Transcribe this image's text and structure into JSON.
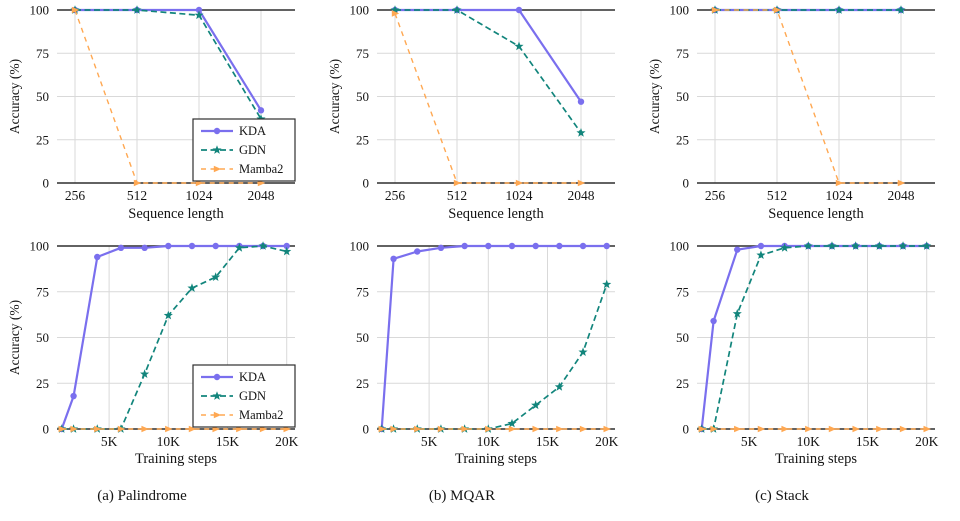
{
  "figure": {
    "captions": [
      {
        "label": "(a) Palindrome"
      },
      {
        "label": "(b) MQAR"
      },
      {
        "label": "(c) Stack"
      }
    ]
  },
  "colors": {
    "kda": "#7a6fee",
    "gdn": "#12857c",
    "mamba2": "#ffa852",
    "grid": "#d9d9d9",
    "axis": "#2e2e2e",
    "text": "#141414"
  },
  "legend_labels": [
    "KDA",
    "GDN",
    "Mamba2"
  ],
  "chart_data": [
    {
      "type": "line",
      "task": "Palindrome",
      "row": "top",
      "xlabel": "Sequence length",
      "ylabel": "Accuracy (%)",
      "x_tick_labels": [
        "256",
        "512",
        "1024",
        "2048"
      ],
      "y_ticks": [
        0,
        25,
        50,
        75,
        100
      ],
      "ylim": [
        0,
        100
      ],
      "legend_position": "bottom-right",
      "series": [
        {
          "name": "KDA",
          "color_key": "kda",
          "style": "solid",
          "marker": "circle",
          "values": [
            100,
            100,
            100,
            42
          ]
        },
        {
          "name": "GDN",
          "color_key": "gdn",
          "style": "dashed",
          "marker": "star",
          "values": [
            100,
            100,
            97,
            37
          ]
        },
        {
          "name": "Mamba2",
          "color_key": "mamba2",
          "style": "dashed",
          "marker": "triangle-right",
          "values": [
            100,
            0,
            0,
            0
          ]
        }
      ]
    },
    {
      "type": "line",
      "task": "MQAR",
      "row": "top",
      "xlabel": "Sequence length",
      "ylabel": "Accuracy (%)",
      "x_tick_labels": [
        "256",
        "512",
        "1024",
        "2048"
      ],
      "y_ticks": [
        0,
        25,
        50,
        75,
        100
      ],
      "ylim": [
        0,
        100
      ],
      "legend_position": null,
      "series": [
        {
          "name": "KDA",
          "color_key": "kda",
          "style": "solid",
          "marker": "circle",
          "values": [
            100,
            100,
            100,
            47
          ]
        },
        {
          "name": "GDN",
          "color_key": "gdn",
          "style": "dashed",
          "marker": "star",
          "values": [
            100,
            100,
            79,
            29
          ]
        },
        {
          "name": "Mamba2",
          "color_key": "mamba2",
          "style": "dashed",
          "marker": "triangle-right",
          "values": [
            98,
            0,
            0,
            0
          ]
        }
      ]
    },
    {
      "type": "line",
      "task": "Stack",
      "row": "top",
      "xlabel": "Sequence length",
      "ylabel": "Accuracy (%)",
      "x_tick_labels": [
        "256",
        "512",
        "1024",
        "2048"
      ],
      "y_ticks": [
        0,
        25,
        50,
        75,
        100
      ],
      "ylim": [
        0,
        100
      ],
      "legend_position": null,
      "series": [
        {
          "name": "KDA",
          "color_key": "kda",
          "style": "solid",
          "marker": "circle",
          "values": [
            100,
            100,
            100,
            100
          ]
        },
        {
          "name": "GDN",
          "color_key": "gdn",
          "style": "dashed",
          "marker": "star",
          "values": [
            100,
            100,
            100,
            100
          ]
        },
        {
          "name": "Mamba2",
          "color_key": "mamba2",
          "style": "dashed",
          "marker": "triangle-right",
          "values": [
            100,
            100,
            0,
            0
          ]
        }
      ]
    },
    {
      "type": "line",
      "task": "Palindrome",
      "row": "bottom",
      "xlabel": "Training steps",
      "ylabel": "Accuracy (%)",
      "x": [
        1,
        2,
        4,
        6,
        8,
        10,
        12,
        14,
        16,
        18,
        20
      ],
      "x_ticks": [
        5,
        10,
        15,
        20
      ],
      "x_tick_labels": [
        "5K",
        "10K",
        "15K",
        "20K"
      ],
      "y_ticks": [
        0,
        25,
        50,
        75,
        100
      ],
      "ylim": [
        0,
        100
      ],
      "legend_position": "bottom-right",
      "series": [
        {
          "name": "KDA",
          "color_key": "kda",
          "style": "solid",
          "marker": "circle",
          "values": [
            0,
            18,
            94,
            99,
            99,
            100,
            100,
            100,
            100,
            100,
            100
          ]
        },
        {
          "name": "GDN",
          "color_key": "gdn",
          "style": "dashed",
          "marker": "star",
          "values": [
            0,
            0,
            0,
            0,
            30,
            62,
            77,
            83,
            99,
            100,
            97
          ]
        },
        {
          "name": "Mamba2",
          "color_key": "mamba2",
          "style": "dashed",
          "marker": "triangle-right",
          "values": [
            0,
            0,
            0,
            0,
            0,
            0,
            0,
            0,
            0,
            0,
            0
          ]
        }
      ]
    },
    {
      "type": "line",
      "task": "MQAR",
      "row": "bottom",
      "xlabel": "Training steps",
      "ylabel": "",
      "x": [
        1,
        2,
        4,
        6,
        8,
        10,
        12,
        14,
        16,
        18,
        20
      ],
      "x_ticks": [
        5,
        10,
        15,
        20
      ],
      "x_tick_labels": [
        "5K",
        "10K",
        "15K",
        "20K"
      ],
      "y_ticks": [
        0,
        25,
        50,
        75,
        100
      ],
      "ylim": [
        0,
        100
      ],
      "legend_position": null,
      "series": [
        {
          "name": "KDA",
          "color_key": "kda",
          "style": "solid",
          "marker": "circle",
          "values": [
            0,
            93,
            97,
            99,
            100,
            100,
            100,
            100,
            100,
            100,
            100
          ]
        },
        {
          "name": "GDN",
          "color_key": "gdn",
          "style": "dashed",
          "marker": "star",
          "values": [
            0,
            0,
            0,
            0,
            0,
            0,
            3,
            13,
            23,
            42,
            79
          ]
        },
        {
          "name": "Mamba2",
          "color_key": "mamba2",
          "style": "dashed",
          "marker": "triangle-right",
          "values": [
            0,
            0,
            0,
            0,
            0,
            0,
            0,
            0,
            0,
            0,
            0
          ]
        }
      ]
    },
    {
      "type": "line",
      "task": "Stack",
      "row": "bottom",
      "xlabel": "Training steps",
      "ylabel": "",
      "x": [
        1,
        2,
        4,
        6,
        8,
        10,
        12,
        14,
        16,
        18,
        20
      ],
      "x_ticks": [
        5,
        10,
        15,
        20
      ],
      "x_tick_labels": [
        "5K",
        "10K",
        "15K",
        "20K"
      ],
      "y_ticks": [
        0,
        25,
        50,
        75,
        100
      ],
      "ylim": [
        0,
        100
      ],
      "legend_position": null,
      "series": [
        {
          "name": "KDA",
          "color_key": "kda",
          "style": "solid",
          "marker": "circle",
          "values": [
            0,
            59,
            98,
            100,
            100,
            100,
            100,
            100,
            100,
            100,
            100
          ]
        },
        {
          "name": "GDN",
          "color_key": "gdn",
          "style": "dashed",
          "marker": "star",
          "values": [
            0,
            0,
            63,
            95,
            99,
            100,
            100,
            100,
            100,
            100,
            100
          ]
        },
        {
          "name": "Mamba2",
          "color_key": "mamba2",
          "style": "dashed",
          "marker": "triangle-right",
          "values": [
            0,
            0,
            0,
            0,
            0,
            0,
            0,
            0,
            0,
            0,
            0
          ]
        }
      ]
    }
  ]
}
